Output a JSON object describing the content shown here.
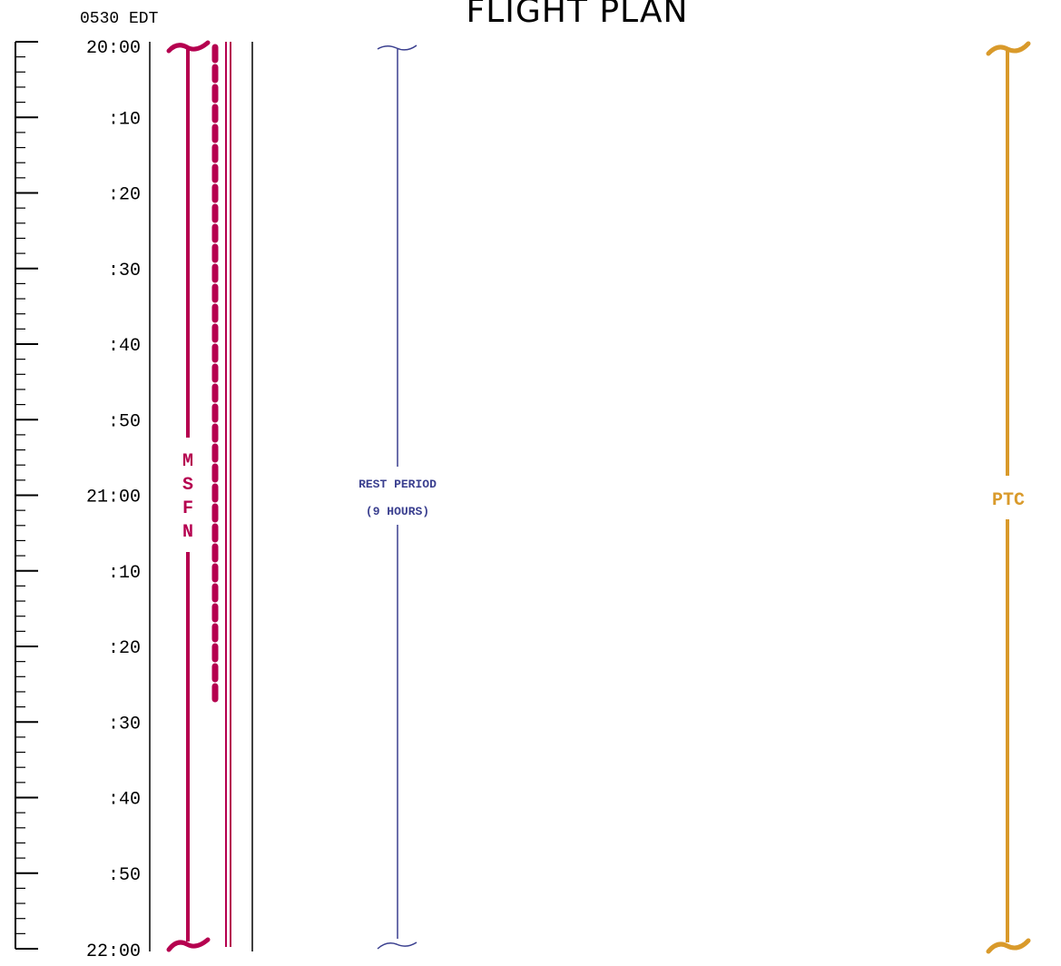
{
  "header": {
    "title": "FLIGHT PLAN",
    "ground_time": "0530 EDT"
  },
  "time_scale": {
    "labels": [
      "20:00",
      ":10",
      ":20",
      ":30",
      ":40",
      ":50",
      "21:00",
      ":10",
      ":20",
      ":30",
      ":40",
      ":50",
      "22:00"
    ],
    "start_minutes": 0,
    "end_minutes": 120,
    "major_tick_every_min": 10,
    "minor_tick_every_min": 2
  },
  "activities": {
    "msfn": {
      "letters": [
        "M",
        "S",
        "F",
        "N"
      ],
      "color": "#b5004f",
      "start_minutes": 0,
      "end_minutes": 120
    },
    "dotted_track": {
      "color": "#b5004f",
      "start_minutes": 0,
      "end_minutes": 87
    },
    "rest_period": {
      "line1": "REST PERIOD",
      "line2": "(9 HOURS)",
      "color": "#3a3f8f",
      "start_minutes": 0,
      "end_minutes": 120
    },
    "ptc": {
      "label": "PTC",
      "color": "#d99a2b",
      "start_minutes": 0,
      "end_minutes": 120
    }
  }
}
